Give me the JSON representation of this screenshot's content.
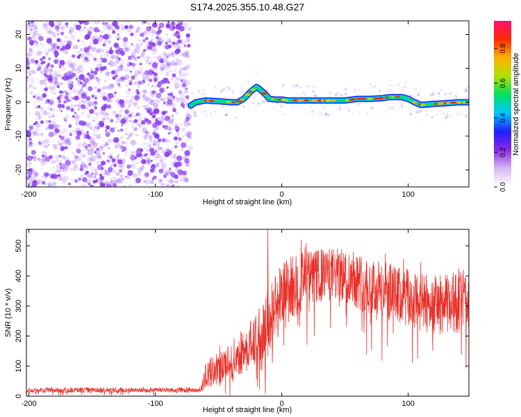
{
  "title": "S174.2025.355.10.48.G27",
  "colors": {
    "scatter": "#8a3ff0",
    "snr_line": "#e8312a",
    "colorbar": [
      "#ffffff",
      "#d8b8f4",
      "#8a2be2",
      "#1e1eff",
      "#00c8ff",
      "#00e060",
      "#b0e000",
      "#ffb000",
      "#ff2a00",
      "#ff1070"
    ]
  },
  "chart_data": [
    {
      "type": "heatmap",
      "title": "S174.2025.355.10.48.G27",
      "xlabel": "Height of straight line (km)",
      "ylabel": "Frequency (Hz)",
      "xlim": [
        -202,
        148
      ],
      "ylim": [
        -25,
        24
      ],
      "xticks": [
        -200,
        -100,
        0,
        100
      ],
      "xticklabels": [
        "-200",
        "-100",
        "0",
        "100"
      ],
      "yticks": [
        -20,
        -10,
        0,
        10,
        20
      ],
      "yticklabels": [
        "-20",
        "-10",
        "0",
        "10",
        "20"
      ],
      "noise_region_x": [
        -202,
        -72
      ],
      "track": {
        "x": [
          -72,
          -68,
          -60,
          -50,
          -40,
          -35,
          -30,
          -25,
          -20,
          -18,
          -15,
          -12,
          -10,
          -5,
          0,
          5,
          10,
          20,
          30,
          40,
          50,
          60,
          70,
          80,
          85,
          90,
          95,
          100,
          105,
          110,
          120,
          130,
          140,
          148
        ],
        "y": [
          -1.0,
          0.0,
          0.5,
          0.3,
          0.0,
          0.0,
          1.0,
          3.0,
          4.5,
          4.0,
          3.0,
          2.0,
          1.0,
          0.8,
          0.8,
          0.5,
          0.5,
          0.5,
          0.5,
          0.5,
          0.5,
          1.0,
          1.0,
          1.2,
          1.5,
          1.5,
          1.5,
          1.0,
          0.0,
          -0.8,
          -0.5,
          -0.3,
          0.0,
          0.0
        ]
      },
      "colorbar": {
        "label": "Normalized spectral amplitude",
        "ticks": [
          0.0,
          0.2,
          0.4,
          0.6,
          0.8
        ],
        "ticklabels": [
          "0.0",
          "0.2",
          "0.4",
          "0.6",
          "0.8"
        ],
        "range": [
          0,
          0.96
        ]
      }
    },
    {
      "type": "line",
      "xlabel": "Height of straight line (km)",
      "ylabel": "SNR (10 * v/v)",
      "xlim": [
        -202,
        148
      ],
      "ylim": [
        0,
        555
      ],
      "xticks": [
        -200,
        -100,
        0,
        100
      ],
      "xticklabels": [
        "-200",
        "-100",
        "0",
        "100"
      ],
      "yticks": [
        0,
        100,
        200,
        300,
        400,
        500
      ],
      "yticklabels": [
        "0",
        "100",
        "200",
        "300",
        "400",
        "500"
      ],
      "spike": {
        "x": -11,
        "y": 555
      },
      "envelope": {
        "x": [
          -202,
          -100,
          -65,
          -62,
          -60,
          -50,
          -40,
          -30,
          -20,
          -15,
          -10,
          -5,
          0,
          10,
          20,
          30,
          40,
          50,
          60,
          70,
          80,
          90,
          100,
          110,
          120,
          130,
          140,
          148
        ],
        "mid": [
          20,
          20,
          20,
          40,
          70,
          95,
          120,
          150,
          190,
          220,
          250,
          300,
          330,
          370,
          390,
          400,
          405,
          400,
          385,
          365,
          350,
          335,
          320,
          310,
          305,
          305,
          310,
          320
        ],
        "spread": [
          8,
          8,
          8,
          25,
          45,
          55,
          65,
          75,
          85,
          110,
          120,
          120,
          120,
          110,
          95,
          90,
          90,
          90,
          95,
          100,
          100,
          100,
          100,
          100,
          100,
          100,
          100,
          100
        ]
      }
    }
  ]
}
